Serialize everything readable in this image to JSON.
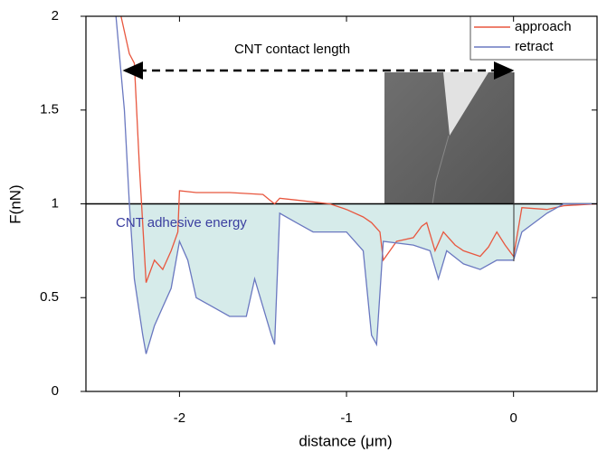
{
  "chart_data": {
    "type": "line",
    "xlabel": "distance (μm)",
    "ylabel": "F(nN)",
    "xlim": [
      -2.56,
      0.5
    ],
    "ylim": [
      0,
      2
    ],
    "xticks": [
      -2,
      -1,
      0
    ],
    "yticks": [
      0,
      0.5,
      1,
      1.5,
      2
    ],
    "hline": 1,
    "legend": "upper right",
    "annotations": [
      "CNT contact length",
      "CNT adhesive energy"
    ],
    "fill_color": "#d6ebea",
    "series": [
      {
        "name": "approach",
        "color": "#e8573f",
        "x": [
          -2.35,
          -2.3,
          -2.27,
          -2.24,
          -2.2,
          -2.15,
          -2.1,
          -2.05,
          -2.01,
          -2.0,
          -1.9,
          -1.7,
          -1.5,
          -1.46,
          -1.43,
          -1.4,
          -1.3,
          -1.2,
          -1.1,
          -1.0,
          -0.9,
          -0.85,
          -0.8,
          -0.78,
          -0.7,
          -0.6,
          -0.55,
          -0.52,
          -0.47,
          -0.42,
          -0.35,
          -0.3,
          -0.2,
          -0.15,
          -0.1,
          -0.05,
          0.0,
          0.05,
          0.2,
          0.3,
          0.5
        ],
        "values": [
          2.0,
          1.8,
          1.75,
          1.2,
          0.58,
          0.7,
          0.65,
          0.75,
          0.85,
          1.07,
          1.06,
          1.06,
          1.05,
          1.02,
          1.0,
          1.03,
          1.02,
          1.01,
          1.0,
          0.97,
          0.93,
          0.9,
          0.85,
          0.7,
          0.8,
          0.82,
          0.88,
          0.9,
          0.75,
          0.85,
          0.78,
          0.75,
          0.72,
          0.77,
          0.85,
          0.78,
          0.72,
          0.98,
          0.97,
          0.99,
          1.0
        ]
      },
      {
        "name": "retract",
        "color": "#6a78c0",
        "x": [
          -2.38,
          -2.33,
          -2.3,
          -2.27,
          -2.22,
          -2.2,
          -2.15,
          -2.1,
          -2.05,
          -2.0,
          -1.95,
          -1.9,
          -1.8,
          -1.7,
          -1.6,
          -1.55,
          -1.45,
          -1.43,
          -1.4,
          -1.3,
          -1.2,
          -1.0,
          -0.9,
          -0.85,
          -0.82,
          -0.78,
          -0.6,
          -0.5,
          -0.45,
          -0.4,
          -0.3,
          -0.2,
          -0.1,
          0.0,
          0.05,
          0.2,
          0.3,
          0.5
        ],
        "values": [
          2.0,
          1.5,
          1.0,
          0.6,
          0.3,
          0.2,
          0.35,
          0.45,
          0.55,
          0.8,
          0.7,
          0.5,
          0.45,
          0.4,
          0.4,
          0.6,
          0.3,
          0.25,
          0.95,
          0.9,
          0.85,
          0.85,
          0.75,
          0.3,
          0.25,
          0.8,
          0.78,
          0.75,
          0.6,
          0.75,
          0.68,
          0.65,
          0.7,
          0.7,
          0.85,
          0.95,
          1.0,
          1.0
        ]
      }
    ]
  }
}
